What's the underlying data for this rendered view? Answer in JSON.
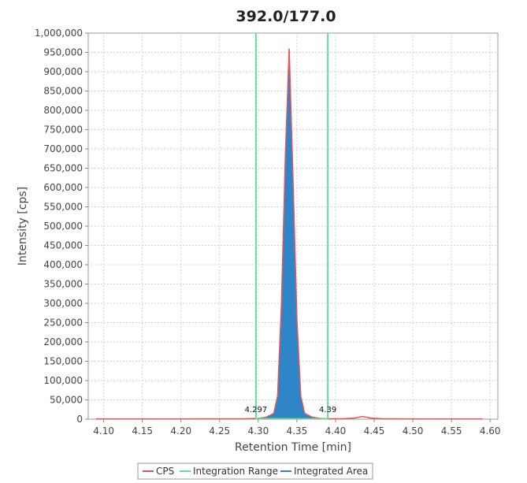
{
  "chart_data": {
    "type": "area",
    "title": "392.0/177.0",
    "xlabel": "Retention Time [min]",
    "ylabel": "Intensity [cps]",
    "xlim": [
      4.08,
      4.61
    ],
    "ylim": [
      0,
      1000000
    ],
    "x_ticks": [
      "4.10",
      "4.15",
      "4.20",
      "4.25",
      "4.30",
      "4.35",
      "4.40",
      "4.45",
      "4.50",
      "4.55",
      "4.60"
    ],
    "y_ticks": [
      "0",
      "50,000",
      "100,000",
      "150,000",
      "200,000",
      "250,000",
      "300,000",
      "350,000",
      "400,000",
      "450,000",
      "500,000",
      "550,000",
      "600,000",
      "650,000",
      "700,000",
      "750,000",
      "800,000",
      "850,000",
      "900,000",
      "950,000",
      "1,000,000"
    ],
    "grid": true,
    "legend_position": "bottom",
    "series": [
      {
        "name": "CPS",
        "color": "#e8535a",
        "x": [
          4.09,
          4.2,
          4.28,
          4.3,
          4.31,
          4.32,
          4.325,
          4.33,
          4.335,
          4.34,
          4.345,
          4.35,
          4.355,
          4.36,
          4.37,
          4.38,
          4.39,
          4.41,
          4.425,
          4.435,
          4.445,
          4.46,
          4.5,
          4.59
        ],
        "y": [
          500,
          600,
          800,
          2000,
          5000,
          15000,
          60000,
          300000,
          680000,
          960000,
          620000,
          260000,
          60000,
          15000,
          5000,
          2000,
          1000,
          1000,
          3000,
          7000,
          3000,
          1000,
          500,
          500
        ]
      },
      {
        "name": "Integration Range",
        "color": "#66dd99",
        "x": [
          4.297,
          4.39
        ]
      },
      {
        "name": "Integrated Area",
        "color": "#2e86c8",
        "x_start": 4.297,
        "x_end": 4.39
      }
    ],
    "annotations": [
      "4.297",
      "4.39"
    ]
  }
}
